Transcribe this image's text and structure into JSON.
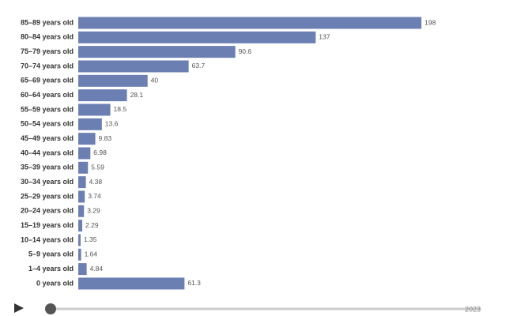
{
  "chart_data": {
    "type": "bar",
    "orientation": "horizontal",
    "color": "#6b7fb2",
    "categories": [
      "85–89 years old",
      "80–84 years old",
      "75–79 years old",
      "70–74 years old",
      "65–69 years old",
      "60–64 years old",
      "55–59 years old",
      "50–54 years old",
      "45–49 years old",
      "40–44 years old",
      "35–39 years old",
      "30–34 years old",
      "25–29 years old",
      "20–24 years old",
      "15–19 years old",
      "10–14 years old",
      "5–9 years old",
      "1–4 years old",
      "0 years old"
    ],
    "values": [
      198,
      137,
      90.6,
      63.7,
      40,
      28.1,
      18.5,
      13.6,
      9.83,
      6.98,
      5.59,
      4.38,
      3.74,
      3.29,
      2.29,
      1.35,
      1.64,
      4.84,
      61.3
    ],
    "timeline_end": "2023"
  }
}
